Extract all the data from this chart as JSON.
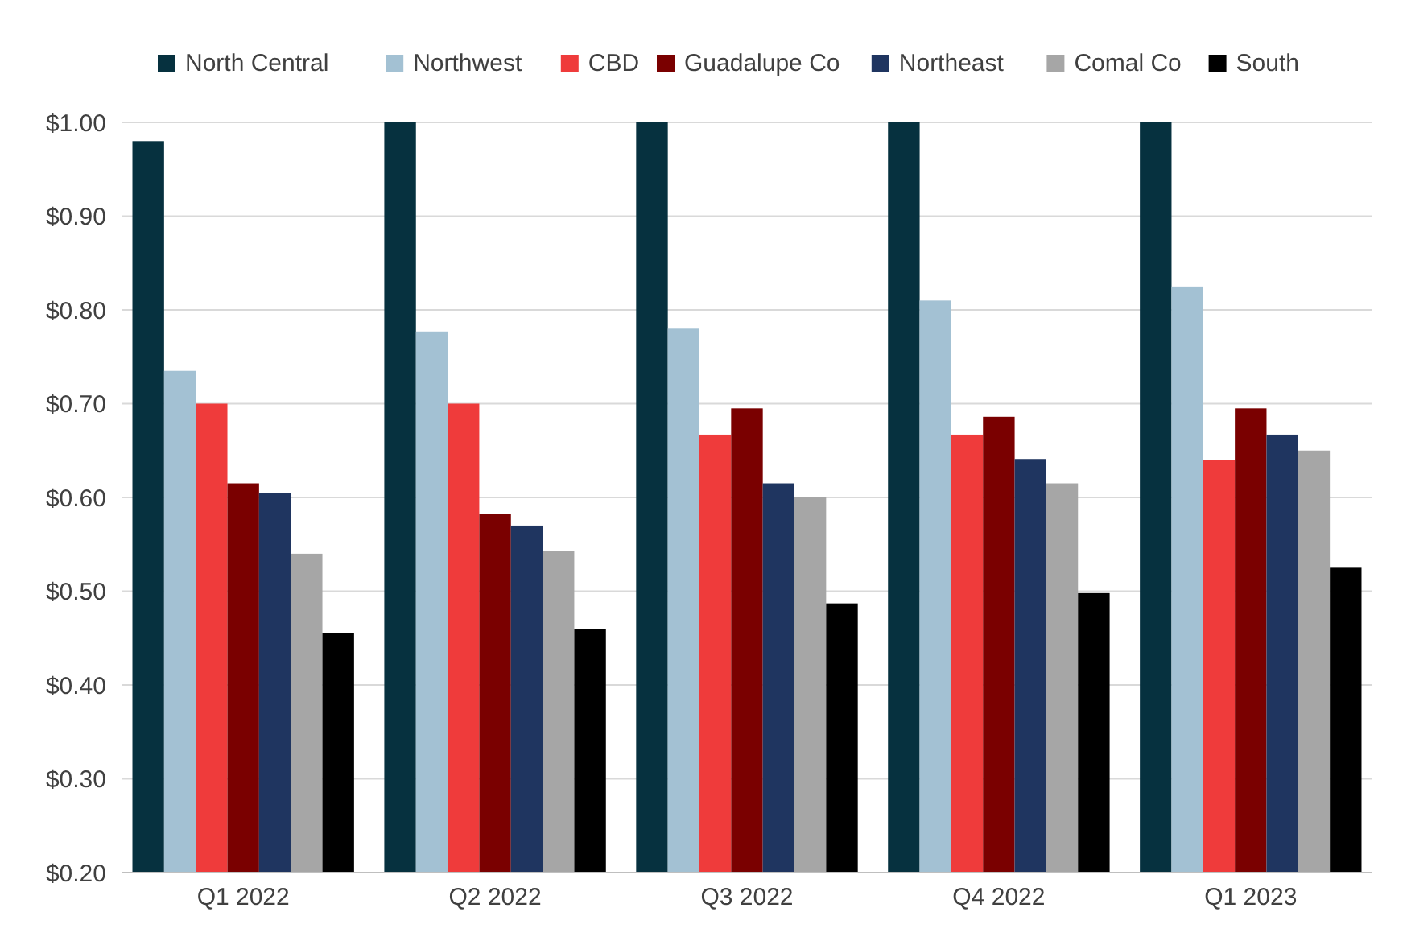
{
  "chart_data": {
    "type": "bar",
    "categories": [
      "Q1 2022",
      "Q2 2022",
      "Q3 2022",
      "Q4 2022",
      "Q1 2023"
    ],
    "series": [
      {
        "name": "North Central",
        "color": "#06313f",
        "values": [
          0.98,
          1.0,
          1.0,
          1.0,
          1.0
        ]
      },
      {
        "name": "Northwest",
        "color": "#a3c1d3",
        "values": [
          0.735,
          0.777,
          0.78,
          0.81,
          0.825
        ]
      },
      {
        "name": "CBD",
        "color": "#ef3b3b",
        "values": [
          0.7,
          0.7,
          0.667,
          0.667,
          0.64
        ]
      },
      {
        "name": "Guadalupe Co",
        "color": "#7a0000",
        "values": [
          0.615,
          0.582,
          0.695,
          0.686,
          0.695
        ]
      },
      {
        "name": "Northeast",
        "color": "#1f3560",
        "values": [
          0.605,
          0.57,
          0.615,
          0.641,
          0.667
        ]
      },
      {
        "name": "Comal Co",
        "color": "#a6a6a6",
        "values": [
          0.54,
          0.543,
          0.6,
          0.615,
          0.65
        ]
      },
      {
        "name": "South",
        "color": "#000000",
        "values": [
          0.455,
          0.46,
          0.487,
          0.498,
          0.525
        ]
      }
    ],
    "ylim": [
      0.2,
      1.0
    ],
    "yticks": [
      {
        "value": 0.2,
        "label": "$0.20"
      },
      {
        "value": 0.3,
        "label": "$0.30"
      },
      {
        "value": 0.4,
        "label": "$0.40"
      },
      {
        "value": 0.5,
        "label": "$0.50"
      },
      {
        "value": 0.6,
        "label": "$0.60"
      },
      {
        "value": 0.7,
        "label": "$0.70"
      },
      {
        "value": 0.8,
        "label": "$0.80"
      },
      {
        "value": 0.9,
        "label": "$0.90"
      },
      {
        "value": 1.0,
        "label": "$1.00"
      }
    ],
    "grid": "y",
    "legend": "top"
  }
}
